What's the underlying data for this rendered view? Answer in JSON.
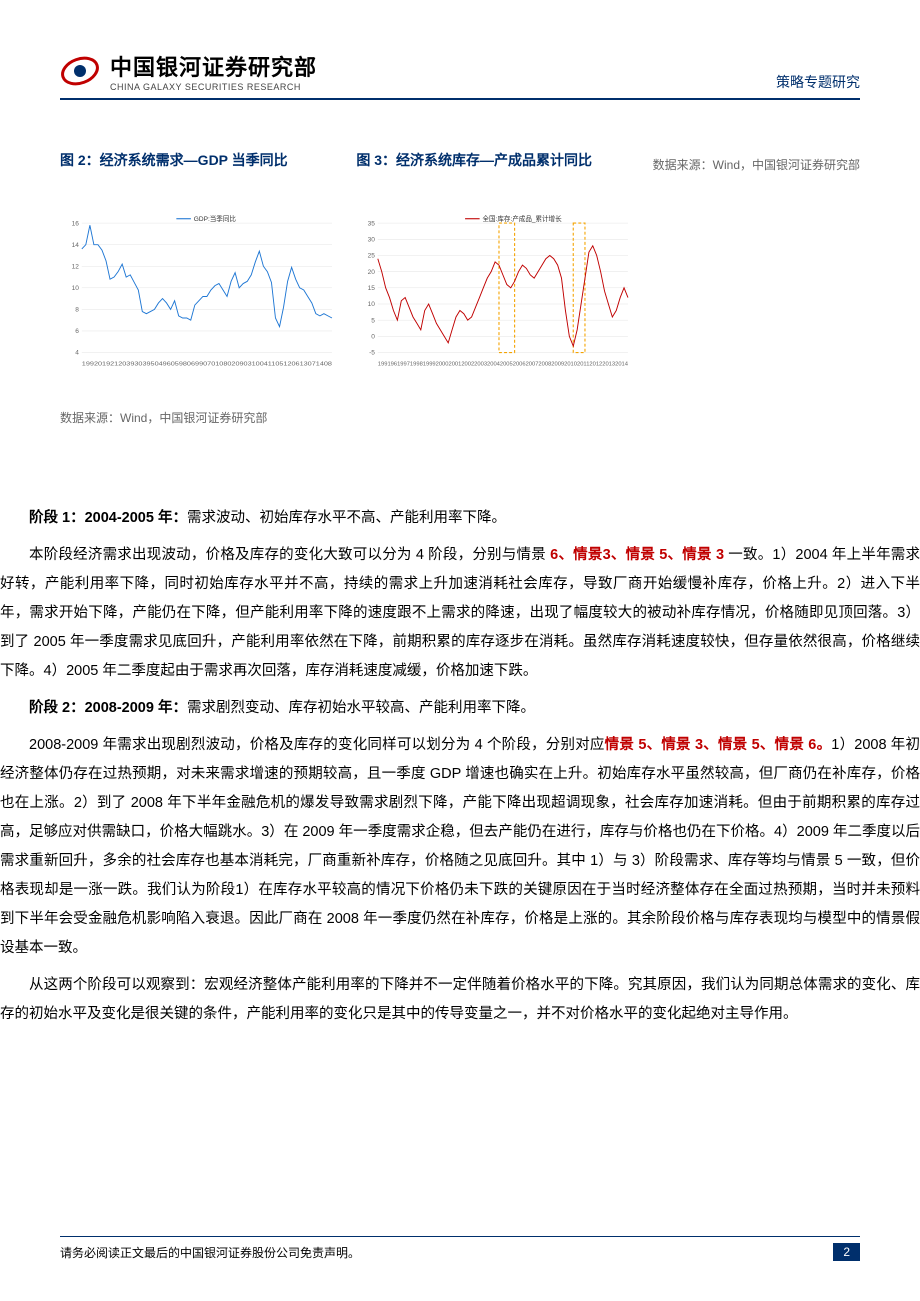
{
  "header": {
    "logo_zh": "中国银河证券研究部",
    "logo_en": "CHINA GALAXY SECURITIES RESEARCH",
    "right": "策略专题研究"
  },
  "chart2": {
    "title": "图 2：经济系统需求—GDP 当季同比",
    "type": "line",
    "legend": "GDP:当季同比",
    "ylim": [
      4,
      16
    ],
    "yticks": [
      4,
      6,
      8,
      10,
      12,
      14,
      16
    ],
    "line_color": "#1f77d4",
    "grid_color": "#d9d9d9",
    "bg": "#ffffff",
    "axis_fontsize": 9,
    "legend_fontsize": 9,
    "x_labels": "19920192120393039504960598069907010802090310041105120613071408",
    "values": [
      13.6,
      14.0,
      15.8,
      14.0,
      14.0,
      13.5,
      12.5,
      10.8,
      11.0,
      11.5,
      12.2,
      11.0,
      11.2,
      10.5,
      9.8,
      7.8,
      7.6,
      7.8,
      8.0,
      8.6,
      9.0,
      8.6,
      8.0,
      8.8,
      7.4,
      7.2,
      7.2,
      7.0,
      8.4,
      8.8,
      9.2,
      9.2,
      9.8,
      10.2,
      10.4,
      9.8,
      9.2,
      10.6,
      11.4,
      10.0,
      10.4,
      10.6,
      11.2,
      12.4,
      13.4,
      12.0,
      11.5,
      10.5,
      7.2,
      6.4,
      8.2,
      10.6,
      11.9,
      10.8,
      10.0,
      9.8,
      9.2,
      8.6,
      7.6,
      7.4,
      7.6,
      7.4,
      7.2
    ]
  },
  "chart3": {
    "title": "图 3：经济系统库存—产成品累计同比",
    "type": "line",
    "legend": "全国:库存:产成品_累计增长",
    "ylim": [
      -5,
      35
    ],
    "yticks": [
      -5,
      0,
      5,
      10,
      15,
      20,
      25,
      30,
      35
    ],
    "line_color": "#c00000",
    "grid_color": "#d9d9d9",
    "bg": "#ffffff",
    "axis_fontsize": 9,
    "legend_fontsize": 9,
    "highlight_color": "#f4a300",
    "highlights": [
      [
        31,
        35
      ],
      [
        50,
        53
      ]
    ],
    "x_labels": "199196199719981999200020012002200320042005200620072008200920102011201220132014",
    "values": [
      24,
      20,
      15,
      12,
      8,
      5,
      11,
      12,
      9,
      6,
      4,
      2,
      8,
      10,
      7,
      4,
      2,
      0,
      -2,
      2,
      6,
      8,
      7,
      5,
      6,
      9,
      12,
      15,
      18,
      20,
      23,
      22,
      19,
      16,
      15,
      17,
      20,
      22,
      21,
      19,
      18,
      20,
      22,
      24,
      25,
      24,
      22,
      18,
      8,
      0,
      -3,
      2,
      10,
      18,
      26,
      28,
      25,
      20,
      14,
      10,
      6,
      8,
      12,
      15,
      12
    ]
  },
  "source": "数据来源：Wind，中国银河证券研究部",
  "paras": {
    "p1_head": "阶段 1：2004-2005 年：",
    "p1_rest": "需求波动、初始库存水平不高、产能利用率下降。",
    "p2_a": "本阶段经济需求出现波动，价格及库存的变化大致可以分为 4 阶段，分别与情景 ",
    "p2_red": "6、情景3、情景 5、情景 3 ",
    "p2_b": "一致。1）2004 年上半年需求好转，产能利用率下降，同时初始库存水平并不高，持续的需求上升加速消耗社会库存，导致厂商开始缓慢补库存，价格上升。2）进入下半年，需求开始下降，产能仍在下降，但产能利用率下降的速度跟不上需求的降速，出现了幅度较大的被动补库存情况，价格随即见顶回落。3）到了 2005 年一季度需求见底回升，产能利用率依然在下降，前期积累的库存逐步在消耗。虽然库存消耗速度较快，但存量依然很高，价格继续下降。4）2005 年二季度起由于需求再次回落，库存消耗速度减缓，价格加速下跌。",
    "p3_head": "阶段 2：2008-2009 年：",
    "p3_rest": "需求剧烈变动、库存初始水平较高、产能利用率下降。",
    "p4_a": "2008-2009 年需求出现剧烈波动，价格及库存的变化同样可以划分为 4 个阶段，分别对应",
    "p4_red": "情景 5、情景 3、情景 5、情景 6。",
    "p4_b": "1）2008 年初经济整体仍存在过热预期，对未来需求增速的预期较高，且一季度 GDP 增速也确实在上升。初始库存水平虽然较高，但厂商仍在补库存，价格也在上涨。2）到了 2008 年下半年金融危机的爆发导致需求剧烈下降，产能下降出现超调现象，社会库存加速消耗。但由于前期积累的库存过高，足够应对供需缺口，价格大幅跳水。3）在 2009 年一季度需求企稳，但去产能仍在进行，库存与价格也仍在下价格。4）2009 年二季度以后需求重新回升，多余的社会库存也基本消耗完，厂商重新补库存，价格随之见底回升。其中 1）与 3）阶段需求、库存等均与情景 5 一致，但价格表现却是一涨一跌。我们认为阶段1）在库存水平较高的情况下价格仍未下跌的关键原因在于当时经济整体存在全面过热预期，当时并未预料到下半年会受金融危机影响陷入衰退。因此厂商在 2008 年一季度仍然在补库存，价格是上涨的。其余阶段价格与库存表现均与模型中的情景假设基本一致。",
    "p5": "从这两个阶段可以观察到：宏观经济整体产能利用率的下降并不一定伴随着价格水平的下降。究其原因，我们认为同期总体需求的变化、库存的初始水平及变化是很关键的条件，产能利用率的变化只是其中的传导变量之一，并不对价格水平的变化起绝对主导作用。"
  },
  "footer": {
    "disclaimer": "请务必阅读正文最后的中国银河证券股份公司免责声明。",
    "page": "2"
  }
}
